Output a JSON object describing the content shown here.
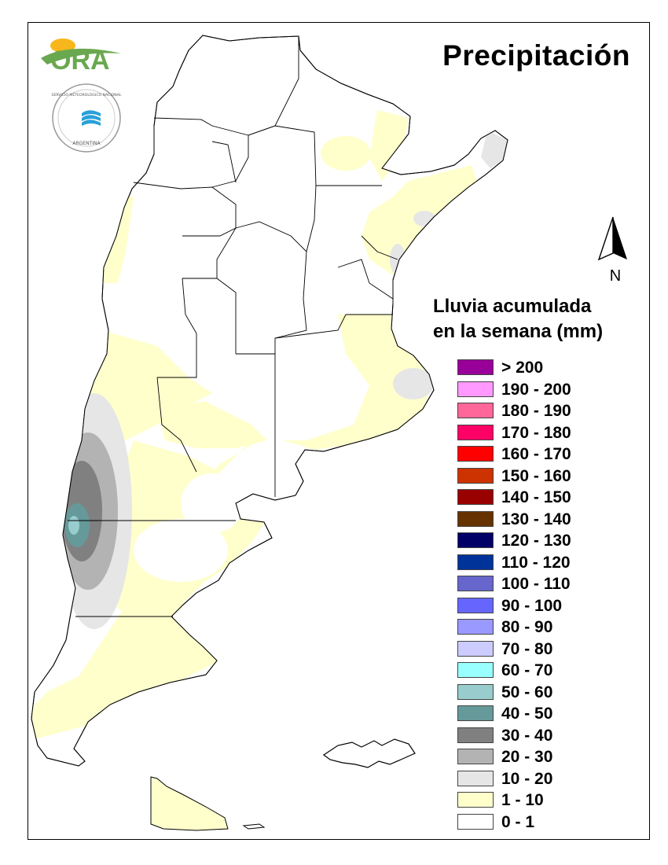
{
  "title": "Precipitación",
  "logos": {
    "ora_text": "ORA",
    "smn_seal_text": "SERVICIO METEOROLÓGICO NACIONAL",
    "smn_seal_bottom": "ARGENTINA"
  },
  "north_label": "N",
  "legend": {
    "title_line1": "Lluvia acumulada",
    "title_line2": "en la semana (mm)",
    "items": [
      {
        "label": "> 200",
        "color": "#990099"
      },
      {
        "label": "190 - 200",
        "color": "#FF99FF"
      },
      {
        "label": "180 - 190",
        "color": "#FF6699"
      },
      {
        "label": "170 - 180",
        "color": "#FF0066"
      },
      {
        "label": "160 - 170",
        "color": "#FF0000"
      },
      {
        "label": "150 - 160",
        "color": "#CC3300"
      },
      {
        "label": "140 - 150",
        "color": "#990000"
      },
      {
        "label": "130 - 140",
        "color": "#663300"
      },
      {
        "label": "120 - 130",
        "color": "#000066"
      },
      {
        "label": "110 - 120",
        "color": "#003399"
      },
      {
        "label": "100 - 110",
        "color": "#6666CC"
      },
      {
        "label": "90 - 100",
        "color": "#6666FF"
      },
      {
        "label": "80 - 90",
        "color": "#9999FF"
      },
      {
        "label": "70 - 80",
        "color": "#CCCCFF"
      },
      {
        "label": "60 - 70",
        "color": "#99FFFF"
      },
      {
        "label": "50 - 60",
        "color": "#99CCCC"
      },
      {
        "label": "40 - 50",
        "color": "#669999"
      },
      {
        "label": "30 - 40",
        "color": "#808080"
      },
      {
        "label": "20 - 30",
        "color": "#B3B3B3"
      },
      {
        "label": "10 - 20",
        "color": "#E6E6E6"
      },
      {
        "label": "1 - 10",
        "color": "#FFFFCC"
      },
      {
        "label": "0 - 1",
        "color": "#FFFFFF"
      }
    ]
  }
}
